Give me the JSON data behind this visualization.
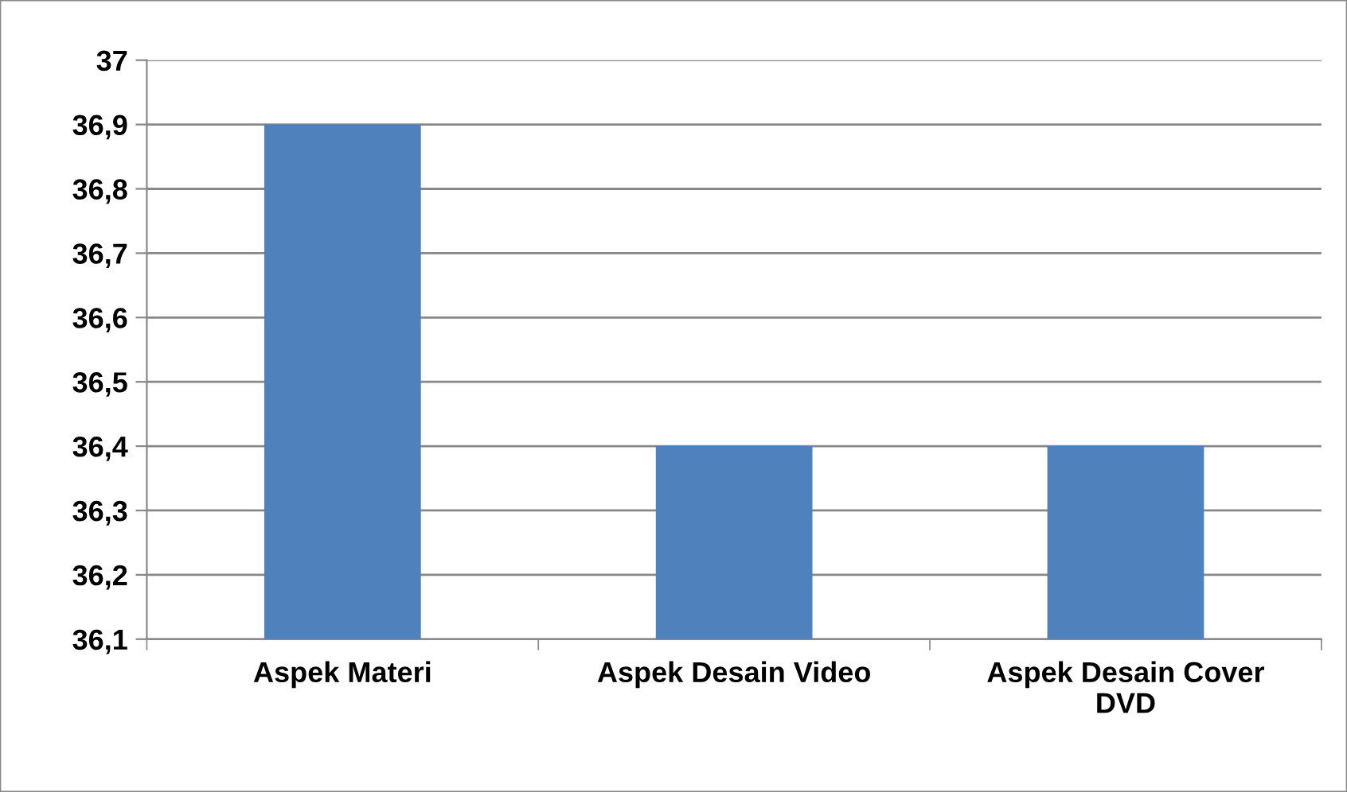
{
  "chart_data": {
    "type": "bar",
    "categories": [
      "Aspek Materi",
      "Aspek Desain Video",
      "Aspek Desain Cover\nDVD"
    ],
    "values": [
      36.9,
      36.4,
      36.4
    ],
    "color": "#4f81bd",
    "ylim": [
      36.1,
      37
    ],
    "yticks": [
      {
        "value": 36.1,
        "label": "36,1"
      },
      {
        "value": 36.2,
        "label": "36,2"
      },
      {
        "value": 36.3,
        "label": "36,3"
      },
      {
        "value": 36.4,
        "label": "36,4"
      },
      {
        "value": 36.5,
        "label": "36,5"
      },
      {
        "value": 36.6,
        "label": "36,6"
      },
      {
        "value": 36.7,
        "label": "36,7"
      },
      {
        "value": 36.8,
        "label": "36,8"
      },
      {
        "value": 36.9,
        "label": "36,9"
      },
      37
    ],
    "grid": "y"
  }
}
